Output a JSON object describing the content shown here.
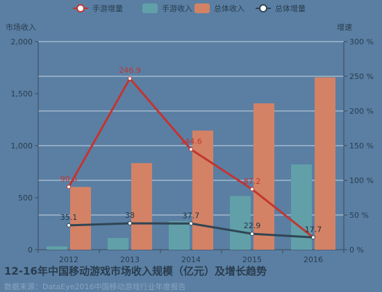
{
  "chart_data": {
    "type": "bar",
    "categories": [
      "2012",
      "2013",
      "2014",
      "2015",
      "2016"
    ],
    "series": [
      {
        "name": "手游增量",
        "kind": "line",
        "axis": "right",
        "color": "#c23531",
        "values": [
          90.6,
          246.9,
          144.6,
          87.2,
          17.7
        ],
        "labels": [
          "90.6",
          "246.9",
          "144.6",
          "87.2",
          "17.7"
        ]
      },
      {
        "name": "手游收入",
        "kind": "bar",
        "axis": "left",
        "color": "#61a0a8",
        "values": [
          32,
          113,
          275,
          515,
          819
        ]
      },
      {
        "name": "总体收入",
        "kind": "bar",
        "axis": "left",
        "color": "#d48265",
        "values": [
          603,
          832,
          1145,
          1407,
          1656
        ]
      },
      {
        "name": "总体增量",
        "kind": "line",
        "axis": "right",
        "color": "#2f4554",
        "values": [
          35.1,
          38,
          37.7,
          22.9,
          17.7
        ],
        "labels": [
          "35.1",
          "38",
          "37.7",
          "22.9",
          "17.7"
        ]
      }
    ],
    "ylabel_left": "市场收入",
    "ylabel_right": "增速",
    "ylim_left": [
      0,
      2000
    ],
    "ylim_right": [
      0,
      300
    ],
    "yticks_left": [
      "0",
      "500",
      "1,000",
      "1,500",
      "2,000"
    ],
    "yticks_right": [
      "0 %",
      "50 %",
      "100 %",
      "150 %",
      "200 %",
      "250 %",
      "300 %"
    ],
    "grid": true,
    "legend": "top-center",
    "title": "12-16年中国移动游戏市场收入规模（亿元）及增长趋势",
    "source": "数据来源：DataEye2016中国移动游戏行业年度报告"
  },
  "colors": {
    "background": "#5a7fa3",
    "axis": "#3a4a5a",
    "text": "#2a3c4e",
    "grid": "#c9d5e2"
  }
}
